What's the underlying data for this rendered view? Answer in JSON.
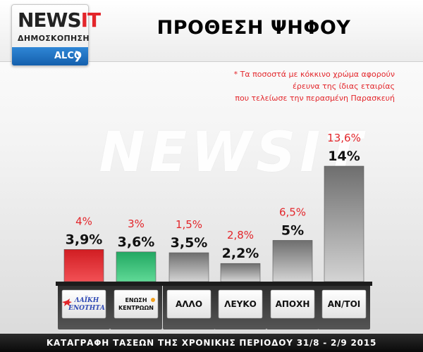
{
  "header": {
    "logo_main": "NEWS",
    "logo_accent": "IT",
    "logo_sub": "ΔΗΜΟΣΚΟΠΗΣΗ",
    "pollster": "ALCO",
    "title": "ΠΡΟΘΕΣΗ ΨΗΦΟΥ"
  },
  "note": {
    "lines": [
      "* Τα ποσοστά με κόκκινο χρώμα αφορούν",
      "έρευνα της ίδιας εταιρίας",
      "που τελείωσε την περασμένη Παρασκευή"
    ]
  },
  "watermark": "NEWSIT",
  "footer": {
    "text": "ΚΑΤΑΓΡΑΦΗ ΤΑΣΕΩΝ ΤΗΣ ΧΡΟΝΙΚΗΣ ΠΕΡΙΟΔΟΥ 31/8  -  2/9 2015"
  },
  "chart_data": {
    "type": "bar",
    "title": "ΠΡΟΘΕΣΗ ΨΗΦΟΥ",
    "categories": [
      "ΛΑΪΚΗ ΕΝΟΤΗΤΑ",
      "ΕΝΩΣΗ ΚΕΝΤΡΩΩΝ",
      "ΑΛΛΟ",
      "ΛΕΥΚΟ",
      "ΑΠΟΧΗ",
      "ΑΝ/ΤΟΙ"
    ],
    "values": [
      3.9,
      3.6,
      3.5,
      2.2,
      5,
      14
    ],
    "value_labels": [
      "3,9%",
      "3,6%",
      "3,5%",
      "2,2%",
      "5%",
      "14%"
    ],
    "previous_values": [
      4,
      3,
      1.5,
      2.8,
      6.5,
      13.6
    ],
    "previous_labels": [
      "4%",
      "3%",
      "1,5%",
      "2,8%",
      "6,5%",
      "13,6%"
    ],
    "colors": [
      "#e3262b",
      "#2fbf71",
      "#8a8a8a",
      "#8a8a8a",
      "#8a8a8a",
      "#8a8a8a"
    ],
    "previous_color": "#e3262b",
    "ylim": [
      0,
      14
    ]
  }
}
